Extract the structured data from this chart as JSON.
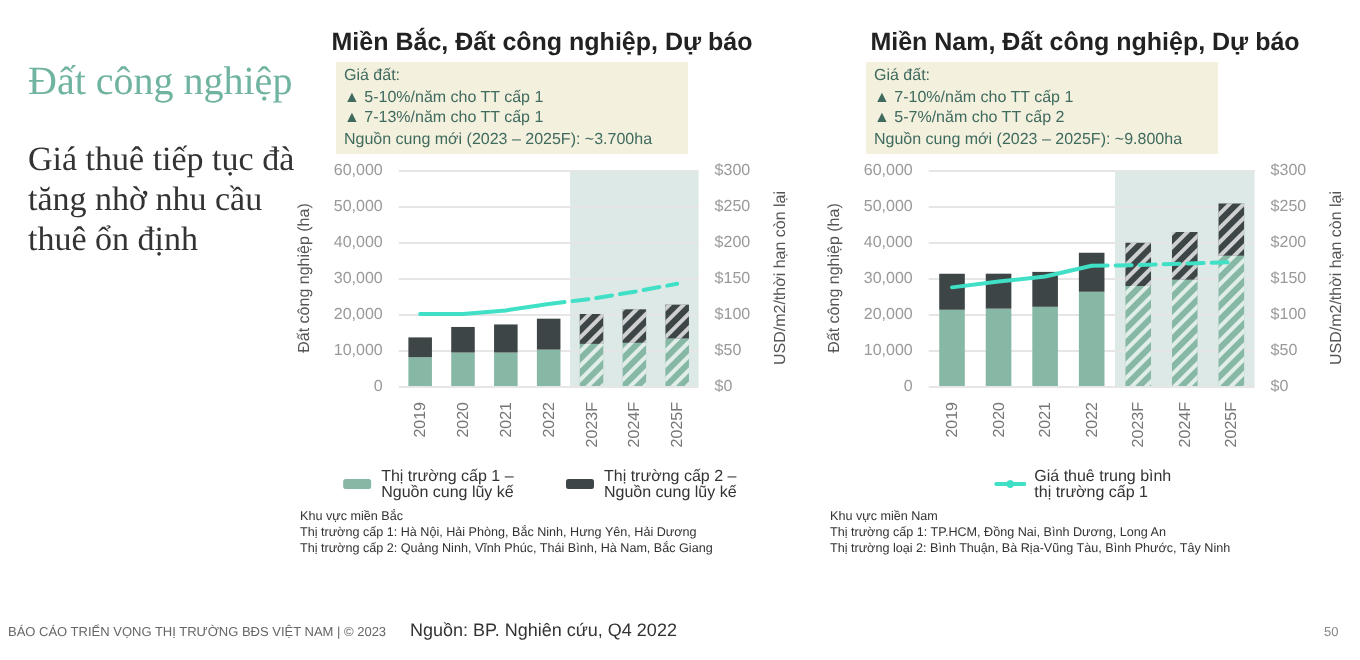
{
  "chart_data": [
    {
      "type": "other",
      "title": "Đất công nghiệp",
      "subtitle": "Giá thuê tiếp tục đà tăng nhờ nhu cầu thuê ổn định",
      "annotations": [
        "BÁO CÁO TRIỂN VỌNG THỊ TRƯỜNG BĐS VIỆT NAM | © 2023",
        "Nguồn: BP. Nghiên cứu, Q4 2022",
        "50"
      ]
    },
    {
      "type": "bar",
      "title": "Miền Bắc, Đất công nghiệp, Dự báo",
      "ylabel": "Đất công nghiệp (ha)",
      "y2label": "USD/m2/thời hạn còn lại",
      "stacked": true,
      "categories": [
        "2019",
        "2020",
        "2021",
        "2022",
        "2023F",
        "2024F",
        "2025F"
      ],
      "series": [
        {
          "name": "Thị trường cấp 1 – Nguồn cung lũy kế",
          "color": "#86b8a5",
          "values": [
            8000,
            9300,
            9300,
            10100,
            11700,
            12000,
            13200
          ]
        },
        {
          "name": "Thị trường cấp 2 – Nguồn cung lũy kế",
          "color": "#3d4547",
          "values": [
            5500,
            7100,
            7800,
            8600,
            8300,
            9300,
            9400
          ]
        },
        {
          "type": "line",
          "axis": "y2",
          "color": "#3fe0c5",
          "line_style": "solid",
          "values": [
            100,
            100,
            105,
            114,
            null,
            null,
            null
          ]
        },
        {
          "type": "line",
          "axis": "y2",
          "color": "#3fe0c5",
          "line_style": "dashed",
          "values": [
            null,
            null,
            null,
            114,
            121,
            131,
            142
          ]
        }
      ],
      "ylim": [
        0,
        60000
      ],
      "yticks": [
        {
          "value": 0,
          "label": "0"
        },
        {
          "value": 10000,
          "label": "10,000"
        },
        {
          "value": 20000,
          "label": "20,000"
        },
        {
          "value": 30000,
          "label": "30,000"
        },
        {
          "value": 40000,
          "label": "40,000"
        },
        {
          "value": 50000,
          "label": "50,000"
        },
        {
          "value": 60000,
          "label": "60,000"
        }
      ],
      "y2lim": [
        0,
        300
      ],
      "y2ticks": [
        {
          "value": 0,
          "label": "$0"
        },
        {
          "value": 50,
          "label": "$50"
        },
        {
          "value": 100,
          "label": "$100"
        },
        {
          "value": 150,
          "label": "$150"
        },
        {
          "value": 200,
          "label": "$200"
        },
        {
          "value": 250,
          "label": "$250"
        },
        {
          "value": 300,
          "label": "$300"
        }
      ],
      "bands": [
        {
          "axis": "x",
          "from": "2023F",
          "to": "2025F",
          "color": "#dde9e7"
        }
      ],
      "grid": "y",
      "legend": "bottom",
      "marker": "none",
      "annotations": [
        "Giá đất:",
        "▲ 5-10%/năm cho TT cấp 1",
        "▲ 7-13%/năm cho TT cấp 1",
        "Nguồn cung mới (2023 – 2025F): ~3.700ha",
        "Khu vực miền Bắc",
        "Thị trường cấp 1: Hà Nội, Hải Phòng, Bắc Ninh, Hưng Yên, Hải Dương",
        "Thị trường cấp 2: Quảng Ninh, Vĩnh Phúc, Thái Bình, Hà Nam, Bắc Giang"
      ]
    },
    {
      "type": "bar",
      "title": "Miền Nam, Đất công nghiệp, Dự báo",
      "ylabel": "Đất công nghiệp (ha)",
      "y2label": "USD/m2/thời hạn còn lại",
      "stacked": true,
      "categories": [
        "2019",
        "2020",
        "2021",
        "2022",
        "2023F",
        "2024F",
        "2025F"
      ],
      "series": [
        {
          "color": "#86b8a5",
          "values": [
            21200,
            21500,
            22000,
            26200,
            27800,
            29500,
            36200
          ]
        },
        {
          "color": "#3d4547",
          "values": [
            10000,
            9700,
            9700,
            10800,
            12000,
            13300,
            14500
          ]
        },
        {
          "type": "line",
          "name": "Giá thuê trung bình thị trường cấp 1",
          "axis": "y2",
          "color": "#3fe0c5",
          "line_style": "solid",
          "values": [
            137,
            145,
            152,
            167,
            null,
            null,
            null
          ]
        },
        {
          "type": "line",
          "axis": "y2",
          "color": "#3fe0c5",
          "line_style": "dashed",
          "values": [
            null,
            null,
            null,
            167,
            168,
            170,
            172
          ]
        }
      ],
      "ylim": [
        0,
        60000
      ],
      "yticks": [
        {
          "value": 0,
          "label": "0"
        },
        {
          "value": 10000,
          "label": "10,000"
        },
        {
          "value": 20000,
          "label": "20,000"
        },
        {
          "value": 30000,
          "label": "30,000"
        },
        {
          "value": 40000,
          "label": "40,000"
        },
        {
          "value": 50000,
          "label": "50,000"
        },
        {
          "value": 60000,
          "label": "60,000"
        }
      ],
      "y2lim": [
        0,
        300
      ],
      "y2ticks": [
        {
          "value": 0,
          "label": "$0"
        },
        {
          "value": 50,
          "label": "$50"
        },
        {
          "value": 100,
          "label": "$100"
        },
        {
          "value": 150,
          "label": "$150"
        },
        {
          "value": 200,
          "label": "$200"
        },
        {
          "value": 250,
          "label": "$250"
        },
        {
          "value": 300,
          "label": "$300"
        }
      ],
      "bands": [
        {
          "axis": "x",
          "from": "2023F",
          "to": "2025F",
          "color": "#dde9e7"
        }
      ],
      "grid": "y",
      "legend": "bottom",
      "marker": "none",
      "annotations": [
        "Giá đất:",
        "▲ 7-10%/năm cho TT cấp 1",
        "▲ 5-7%/năm cho TT cấp 2",
        "Nguồn cung mới (2023 – 2025F): ~9.800ha",
        "Khu vực miền Nam",
        "Thị trường cấp 1: TP.HCM, Đồng Nai, Bình Dương, Long An",
        "Thị trường loại 2: Bình Thuận, Bà Rịa-Vũng Tàu, Bình Phước, Tây Ninh"
      ]
    }
  ]
}
